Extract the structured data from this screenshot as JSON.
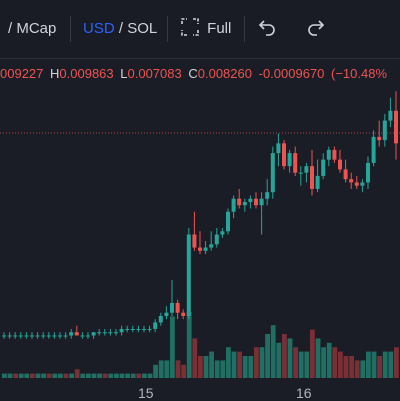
{
  "toolbar": {
    "metric_partial": "/ MCap",
    "currency_active": "USD",
    "currency_sep": "/",
    "currency_other": "SOL",
    "fullscreen_label": "Full",
    "fullscreen_icon": "fullscreen-icon",
    "undo_icon": "undo-icon",
    "redo_icon": "redo-icon"
  },
  "ohlc": {
    "open_partial": "009227",
    "high_label": "H",
    "high": "0.009863",
    "low_label": "L",
    "low": "0.007083",
    "close_label": "C",
    "close": "0.008260",
    "change": "-0.0009670",
    "change_pct": "(−10.48%"
  },
  "colors": {
    "up": "#26a69a",
    "down": "#ef5350",
    "up_volume": "#1f6f62",
    "down_volume": "#7a2f35",
    "background": "#1a1d26",
    "accent": "#2962ff"
  },
  "x_axis": {
    "labels": [
      "15",
      "16"
    ]
  },
  "chart_data": {
    "type": "candlestick",
    "x_tick_labels": [
      "15",
      "16"
    ],
    "y_scale": "price (values estimated, no price axis visible)",
    "candles": [
      [
        0.0024,
        0.0025,
        0.0023,
        0.0024
      ],
      [
        0.0024,
        0.0025,
        0.0023,
        0.0024
      ],
      [
        0.0024,
        0.0025,
        0.0023,
        0.0024
      ],
      [
        0.0024,
        0.0025,
        0.0023,
        0.0024
      ],
      [
        0.0024,
        0.0025,
        0.0023,
        0.0024
      ],
      [
        0.0024,
        0.0025,
        0.0023,
        0.0024
      ],
      [
        0.0024,
        0.0025,
        0.0023,
        0.0024
      ],
      [
        0.0024,
        0.0025,
        0.0023,
        0.0024
      ],
      [
        0.0024,
        0.0025,
        0.0023,
        0.0024
      ],
      [
        0.0024,
        0.0025,
        0.0023,
        0.0024
      ],
      [
        0.0024,
        0.0025,
        0.0023,
        0.0024
      ],
      [
        0.0024,
        0.0025,
        0.0023,
        0.0024
      ],
      [
        0.0024,
        0.0026,
        0.0023,
        0.0025
      ],
      [
        0.0025,
        0.0027,
        0.0024,
        0.0024
      ],
      [
        0.0024,
        0.0025,
        0.0023,
        0.0024
      ],
      [
        0.0024,
        0.0025,
        0.0023,
        0.0024
      ],
      [
        0.0024,
        0.0025,
        0.0023,
        0.0025
      ],
      [
        0.0025,
        0.0026,
        0.0024,
        0.0025
      ],
      [
        0.0025,
        0.0026,
        0.0024,
        0.0025
      ],
      [
        0.0025,
        0.0026,
        0.0024,
        0.0025
      ],
      [
        0.0025,
        0.0026,
        0.0024,
        0.0025
      ],
      [
        0.0025,
        0.0027,
        0.0024,
        0.0026
      ],
      [
        0.0026,
        0.0027,
        0.0025,
        0.0026
      ],
      [
        0.0026,
        0.0027,
        0.0025,
        0.0026
      ],
      [
        0.0026,
        0.0027,
        0.0025,
        0.0026
      ],
      [
        0.0026,
        0.0027,
        0.0025,
        0.0026
      ],
      [
        0.0026,
        0.0027,
        0.0025,
        0.0026
      ],
      [
        0.0026,
        0.0029,
        0.0025,
        0.0028
      ],
      [
        0.0028,
        0.0031,
        0.0027,
        0.003
      ],
      [
        0.003,
        0.0033,
        0.0029,
        0.0031
      ],
      [
        0.0031,
        0.0041,
        0.003,
        0.0034
      ],
      [
        0.0034,
        0.0035,
        0.0029,
        0.0031
      ],
      [
        0.0031,
        0.0032,
        0.0029,
        0.003
      ],
      [
        0.003,
        0.0057,
        0.0029,
        0.0055
      ],
      [
        0.0055,
        0.0062,
        0.005,
        0.0051
      ],
      [
        0.0051,
        0.0056,
        0.0049,
        0.005
      ],
      [
        0.005,
        0.0053,
        0.0049,
        0.0051
      ],
      [
        0.0051,
        0.0056,
        0.005,
        0.0052
      ],
      [
        0.0052,
        0.0057,
        0.0051,
        0.0055
      ],
      [
        0.0055,
        0.0057,
        0.0054,
        0.0056
      ],
      [
        0.0056,
        0.0063,
        0.0055,
        0.0062
      ],
      [
        0.0062,
        0.0067,
        0.006,
        0.0066
      ],
      [
        0.0066,
        0.0069,
        0.0063,
        0.0064
      ],
      [
        0.0064,
        0.0066,
        0.0062,
        0.0065
      ],
      [
        0.0065,
        0.0067,
        0.0063,
        0.0066
      ],
      [
        0.0066,
        0.0068,
        0.0063,
        0.0064
      ],
      [
        0.0064,
        0.0068,
        0.0055,
        0.0066
      ],
      [
        0.0066,
        0.0072,
        0.0064,
        0.0068
      ],
      [
        0.0068,
        0.0082,
        0.0066,
        0.008
      ],
      [
        0.008,
        0.0086,
        0.0076,
        0.0083
      ],
      [
        0.0083,
        0.0084,
        0.0075,
        0.0076
      ],
      [
        0.0076,
        0.0081,
        0.0074,
        0.008
      ],
      [
        0.008,
        0.0082,
        0.0073,
        0.0074
      ],
      [
        0.0074,
        0.0076,
        0.007,
        0.0074
      ],
      [
        0.0074,
        0.0077,
        0.0071,
        0.0076
      ],
      [
        0.0076,
        0.0081,
        0.0067,
        0.0069
      ],
      [
        0.0069,
        0.0078,
        0.0068,
        0.0073
      ],
      [
        0.0073,
        0.008,
        0.0072,
        0.0078
      ],
      [
        0.0078,
        0.0082,
        0.0076,
        0.0081
      ],
      [
        0.0081,
        0.0082,
        0.0077,
        0.0078
      ],
      [
        0.0078,
        0.0081,
        0.0074,
        0.0075
      ],
      [
        0.0075,
        0.0078,
        0.0071,
        0.0072
      ],
      [
        0.0072,
        0.0074,
        0.0069,
        0.0071
      ],
      [
        0.0071,
        0.0073,
        0.0069,
        0.007
      ],
      [
        0.007,
        0.0072,
        0.0068,
        0.0071
      ],
      [
        0.0071,
        0.0079,
        0.0069,
        0.0077
      ],
      [
        0.0077,
        0.0087,
        0.0076,
        0.0085
      ],
      [
        0.0085,
        0.009,
        0.0082,
        0.0084
      ],
      [
        0.0084,
        0.0092,
        0.0082,
        0.009
      ],
      [
        0.009,
        0.0097,
        0.0088,
        0.0093
      ],
      [
        0.0093,
        0.0099,
        0.0078,
        0.0083
      ]
    ],
    "volume": [
      1,
      1,
      1,
      1,
      1,
      1,
      1,
      1,
      1,
      1,
      1,
      1,
      1,
      2,
      1,
      1,
      1,
      1,
      1,
      1,
      1,
      1,
      1,
      1,
      1,
      1,
      1,
      3,
      4,
      4,
      14,
      4,
      3,
      15,
      9,
      5,
      5,
      6,
      4,
      4,
      7,
      6,
      6,
      5,
      5,
      7,
      7,
      10,
      12,
      8,
      10,
      9,
      7,
      6,
      6,
      11,
      9,
      7,
      8,
      7,
      6,
      5,
      5,
      4,
      4,
      6,
      6,
      5,
      6,
      6,
      7
    ],
    "volume_direction": [
      "u",
      "u",
      "d",
      "u",
      "u",
      "d",
      "u",
      "u",
      "d",
      "u",
      "u",
      "d",
      "u",
      "d",
      "u",
      "u",
      "u",
      "u",
      "d",
      "u",
      "u",
      "u",
      "u",
      "u",
      "d",
      "u",
      "u",
      "u",
      "u",
      "u",
      "u",
      "d",
      "d",
      "u",
      "d",
      "d",
      "u",
      "u",
      "u",
      "u",
      "u",
      "u",
      "d",
      "u",
      "u",
      "d",
      "u",
      "u",
      "u",
      "u",
      "d",
      "u",
      "d",
      "u",
      "u",
      "d",
      "u",
      "u",
      "u",
      "d",
      "d",
      "d",
      "d",
      "d",
      "u",
      "u",
      "u",
      "d",
      "u",
      "u",
      "d"
    ]
  }
}
